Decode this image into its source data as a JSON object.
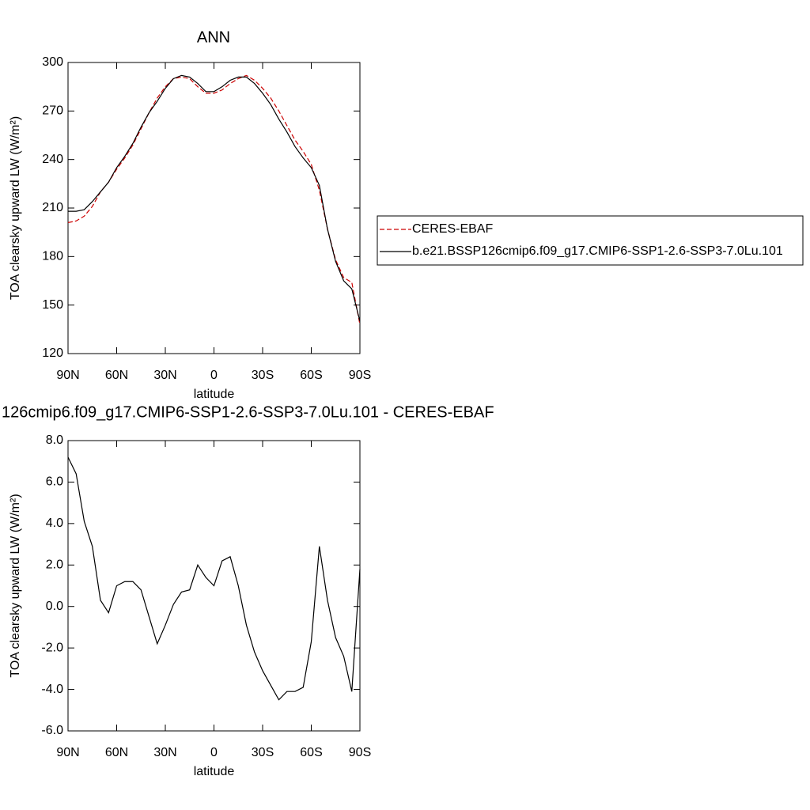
{
  "chart_data": [
    {
      "type": "line",
      "title": "ANN",
      "xlabel": "latitude",
      "ylabel": "TOA clearsky upward LW (W/m²)",
      "x": [
        90,
        85,
        80,
        75,
        70,
        65,
        60,
        55,
        50,
        45,
        40,
        35,
        30,
        25,
        20,
        15,
        10,
        5,
        0,
        -5,
        -10,
        -15,
        -20,
        -25,
        -30,
        -35,
        -40,
        -45,
        -50,
        -55,
        -60,
        -65,
        -70,
        -75,
        -80,
        -85,
        -90
      ],
      "xlim": [
        90,
        -90
      ],
      "xticks": [
        {
          "value": 90,
          "label": "90N"
        },
        {
          "value": 60,
          "label": "60N"
        },
        {
          "value": 30,
          "label": "30N"
        },
        0,
        {
          "value": -30,
          "label": "30S"
        },
        {
          "value": -60,
          "label": "60S"
        },
        {
          "value": -90,
          "label": "90S"
        }
      ],
      "ylim": [
        120,
        300
      ],
      "yticks": [
        120,
        150,
        180,
        210,
        240,
        270,
        300
      ],
      "legend": "right",
      "series": [
        {
          "name": "CERES-EBAF",
          "color": "#cc0000",
          "line_style": "dashed",
          "values": [
            201,
            202,
            205,
            211,
            220,
            226,
            234,
            241,
            249,
            259,
            269,
            278,
            285,
            290,
            291,
            290,
            285,
            281,
            281,
            283,
            287,
            290,
            292,
            289,
            284,
            278,
            270,
            261,
            252,
            245,
            237,
            221,
            197,
            178,
            167,
            164,
            138
          ]
        },
        {
          "name": "b.e21.BSSP126cmip6.f09_g17.CMIP6-SSP1-2.6-SSP3-7.0Lu.101",
          "color": "#000000",
          "line_style": "solid",
          "values": [
            208,
            208,
            209,
            214,
            220,
            226,
            235,
            242,
            250,
            260,
            269,
            276,
            284,
            290,
            292,
            291,
            287,
            282,
            282,
            285,
            289,
            291,
            291,
            287,
            281,
            274,
            265,
            257,
            248,
            241,
            235,
            224,
            197,
            177,
            165,
            160,
            140
          ]
        }
      ]
    },
    {
      "type": "line",
      "title": "126cmip6.f09_g17.CMIP6-SSP1-2.6-SSP3-7.0Lu.101 - CERES-EBAF",
      "xlabel": "latitude",
      "ylabel": "TOA clearsky upward LW (W/m²)",
      "x": [
        90,
        85,
        80,
        75,
        70,
        65,
        60,
        55,
        50,
        45,
        40,
        35,
        30,
        25,
        20,
        15,
        10,
        5,
        0,
        -5,
        -10,
        -15,
        -20,
        -25,
        -30,
        -35,
        -40,
        -45,
        -50,
        -55,
        -60,
        -65,
        -70,
        -75,
        -80,
        -85,
        -90
      ],
      "xlim": [
        90,
        -90
      ],
      "xticks": [
        {
          "value": 90,
          "label": "90N"
        },
        {
          "value": 60,
          "label": "60N"
        },
        {
          "value": 30,
          "label": "30N"
        },
        0,
        {
          "value": -30,
          "label": "30S"
        },
        {
          "value": -60,
          "label": "60S"
        },
        {
          "value": -90,
          "label": "90S"
        }
      ],
      "ylim": [
        -6,
        8
      ],
      "yticks": [
        {
          "value": -6,
          "label": "-6.0"
        },
        {
          "value": -4,
          "label": "-4.0"
        },
        {
          "value": -2,
          "label": "-2.0"
        },
        {
          "value": 0,
          "label": "0.0"
        },
        {
          "value": 2,
          "label": "2.0"
        },
        {
          "value": 4,
          "label": "4.0"
        },
        {
          "value": 6,
          "label": "6.0"
        },
        {
          "value": 8,
          "label": "8.0"
        }
      ],
      "series": [
        {
          "color": "#000000",
          "line_style": "solid",
          "values": [
            7.2,
            6.4,
            4.1,
            2.9,
            0.3,
            -0.3,
            1.0,
            1.2,
            1.2,
            0.8,
            -0.5,
            -1.8,
            -0.9,
            0.1,
            0.7,
            0.8,
            2.0,
            1.4,
            1.0,
            2.2,
            2.4,
            1.0,
            -0.9,
            -2.2,
            -3.1,
            -3.8,
            -4.5,
            -4.1,
            -4.1,
            -3.9,
            -1.7,
            2.9,
            0.3,
            -1.5,
            -2.4,
            -4.1,
            1.8
          ]
        }
      ]
    }
  ]
}
